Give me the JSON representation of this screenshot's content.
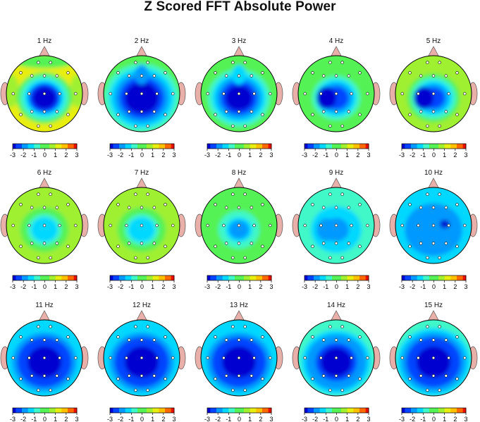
{
  "title": "Z Scored FFT Absolute Power",
  "colors": {
    "scale": [
      "#0000d0",
      "#0044ff",
      "#0099ff",
      "#00d8ff",
      "#3ff8c8",
      "#55f255",
      "#a0f030",
      "#e8ee10",
      "#ffc000",
      "#ff6a00",
      "#e81000"
    ],
    "head_outline": "#000000",
    "ear_nose": "#e8b0a8",
    "electrode": "#ffffff"
  },
  "chart_data": {
    "type": "heatmap",
    "plot": "topographic head map",
    "measure": "Z score",
    "colorbar": {
      "range": [
        -3,
        3
      ],
      "ticks": [
        "-3",
        "-2",
        "-1",
        "0",
        "1",
        "2",
        "3"
      ]
    },
    "maps": [
      {
        "label": "1 Hz",
        "z": {
          "edge": 1.0,
          "center": -3.0,
          "center_extent": 0.56,
          "temporal_hot": 0.6,
          "frontal_warm": 0.3
        }
      },
      {
        "label": "2 Hz",
        "z": {
          "edge": -0.3,
          "center": -3.0,
          "center_extent": 0.8,
          "notch_front": true
        }
      },
      {
        "label": "3 Hz",
        "z": {
          "edge": 0.1,
          "center": -3.0,
          "center_extent": 0.64,
          "notch_front": true
        }
      },
      {
        "label": "4 Hz",
        "z": {
          "edge": 0.3,
          "center": -2.2,
          "center_extent": 0.56,
          "left_core": -3.0
        }
      },
      {
        "label": "5 Hz",
        "z": {
          "edge": 0.5,
          "center": -2.3,
          "center_extent": 0.52,
          "left_core": -3.0
        }
      },
      {
        "label": "6 Hz",
        "z": {
          "edge": 0.6,
          "center": -1.3,
          "center_extent": 0.46,
          "temporal_hot": 0.8,
          "frontal_warm": 0.5
        }
      },
      {
        "label": "7 Hz",
        "z": {
          "edge": 0.6,
          "center": -1.5,
          "center_extent": 0.46
        }
      },
      {
        "label": "8 Hz",
        "z": {
          "edge": 0.3,
          "center": -1.7,
          "center_extent": 0.46
        }
      },
      {
        "label": "9 Hz",
        "z": {
          "edge": -0.6,
          "center": -1.6,
          "center_extent": 0.6,
          "left_core": -2.0
        }
      },
      {
        "label": "10 Hz",
        "z": {
          "edge": -1.3,
          "center": -2.1,
          "center_extent": 0.7,
          "right_core": -3.0
        }
      },
      {
        "label": "11 Hz",
        "z": {
          "edge": -1.0,
          "center": -3.0,
          "center_extent": 0.8
        }
      },
      {
        "label": "12 Hz",
        "z": {
          "edge": -1.0,
          "center": -3.0,
          "center_extent": 0.8
        }
      },
      {
        "label": "13 Hz",
        "z": {
          "edge": -1.0,
          "center": -3.0,
          "center_extent": 0.8
        }
      },
      {
        "label": "14 Hz",
        "z": {
          "edge": -0.6,
          "center": -3.0,
          "center_extent": 0.74
        }
      },
      {
        "label": "15 Hz",
        "z": {
          "edge": -0.8,
          "center": -3.0,
          "center_extent": 0.8
        }
      }
    ],
    "grid": false,
    "legend": "colorbar below each map"
  }
}
